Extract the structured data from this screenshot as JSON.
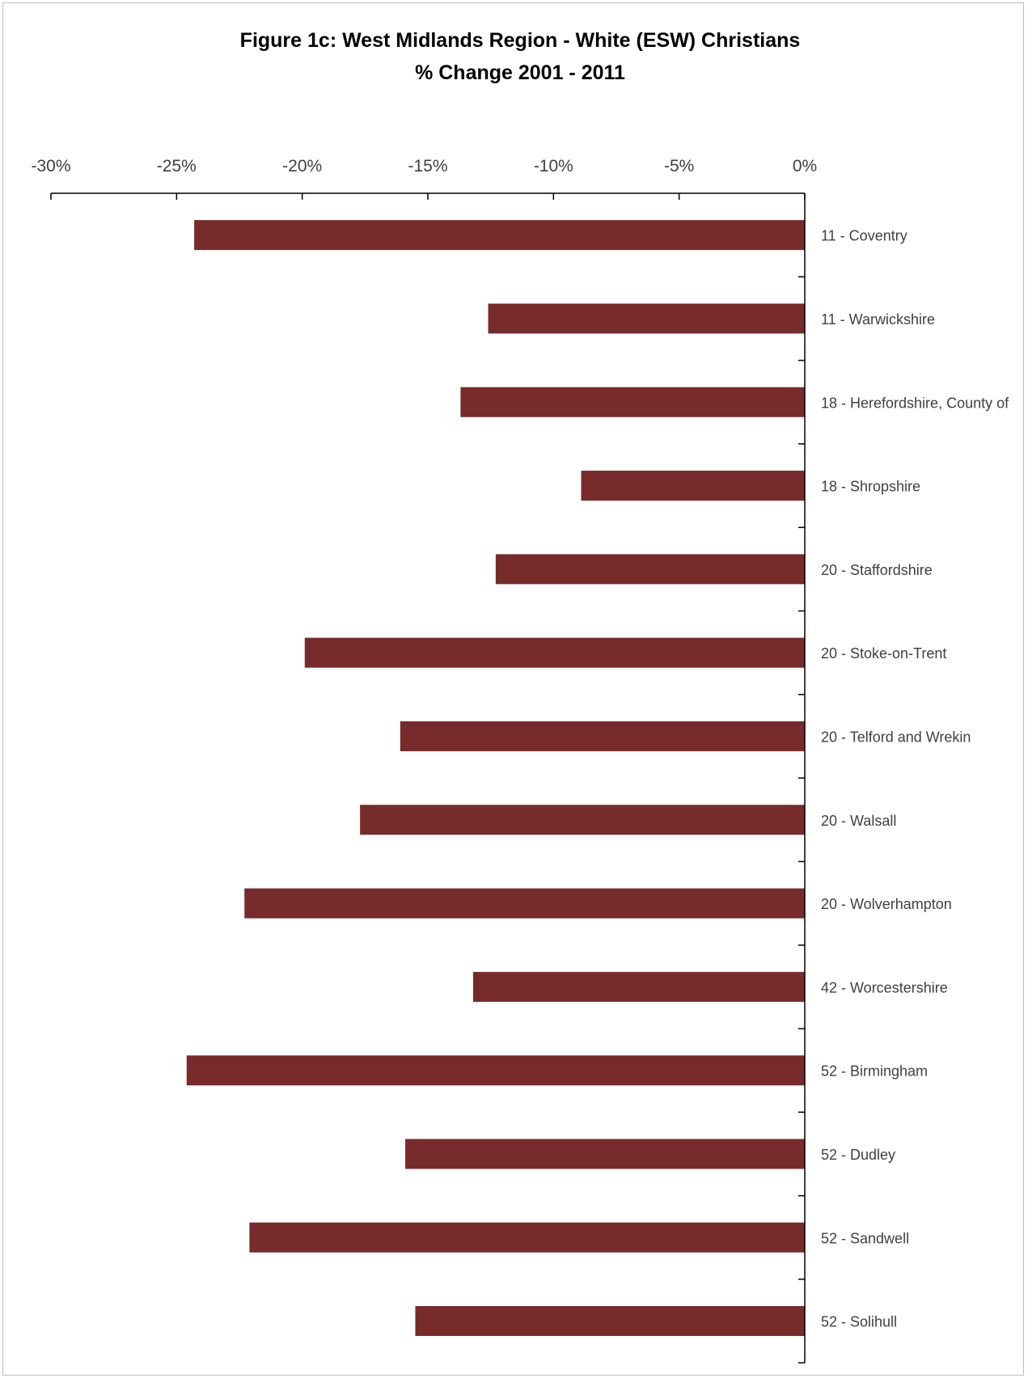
{
  "chart_data": {
    "type": "bar",
    "orientation": "horizontal",
    "title": "Figure 1c: West Midlands Region - White (ESW) Christians",
    "subtitle": "% Change 2001 - 2011",
    "xlabel": "",
    "ylabel": "",
    "xlim": [
      -30,
      0
    ],
    "x_ticks": [
      "-30%",
      "-25%",
      "-20%",
      "-15%",
      "-10%",
      "-5%",
      "0%"
    ],
    "x_axis_position": "top",
    "grid": false,
    "legend": "none",
    "bar_color": "#772B2B",
    "categories": [
      "11 - Coventry",
      "11 - Warwickshire",
      "18 - Herefordshire, County of",
      "18 - Shropshire",
      "20 - Staffordshire",
      "20 - Stoke-on-Trent",
      "20 - Telford and Wrekin",
      "20 - Walsall",
      "20 - Wolverhampton",
      "42 - Worcestershire",
      "52 - Birmingham",
      "52 - Dudley",
      "52 - Sandwell",
      "52 - Solihull"
    ],
    "values": [
      -24.3,
      -12.6,
      -13.7,
      -8.9,
      -12.3,
      -19.9,
      -16.1,
      -17.7,
      -22.3,
      -13.2,
      -24.6,
      -15.9,
      -22.1,
      -15.5
    ]
  }
}
